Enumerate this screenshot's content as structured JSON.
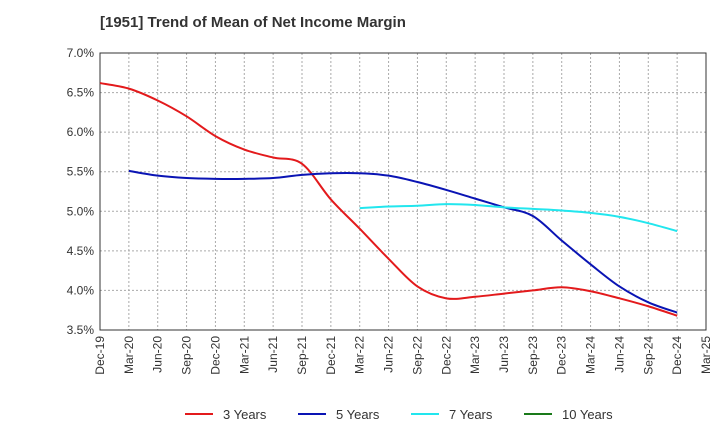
{
  "chart_data": {
    "type": "line",
    "title": "[1951]  Trend of Mean of Net Income Margin",
    "xlabel": "",
    "ylabel": "",
    "x_ticks": [
      "Dec-19",
      "Mar-20",
      "Jun-20",
      "Sep-20",
      "Dec-20",
      "Mar-21",
      "Jun-21",
      "Sep-21",
      "Dec-21",
      "Mar-22",
      "Jun-22",
      "Sep-22",
      "Dec-22",
      "Mar-23",
      "Jun-23",
      "Sep-23",
      "Dec-23",
      "Mar-24",
      "Jun-24",
      "Sep-24",
      "Dec-24",
      "Mar-25"
    ],
    "y_ticks": [
      "3.5%",
      "4.0%",
      "4.5%",
      "5.0%",
      "5.5%",
      "6.0%",
      "6.5%",
      "7.0%"
    ],
    "ylim": [
      3.5,
      7.0
    ],
    "grid": true,
    "legend_position": "bottom",
    "series": [
      {
        "name": "3 Years",
        "color": "#e31a1c",
        "values": [
          6.62,
          6.55,
          6.4,
          6.2,
          5.95,
          5.78,
          5.68,
          5.6,
          5.15,
          4.78,
          4.4,
          4.05,
          3.9,
          3.92,
          3.96,
          4.0,
          4.04,
          3.99,
          3.9,
          3.8,
          3.68,
          null
        ]
      },
      {
        "name": "5 Years",
        "color": "#0a14b4",
        "values": [
          null,
          5.51,
          5.45,
          5.42,
          5.41,
          5.41,
          5.42,
          5.46,
          5.48,
          5.48,
          5.45,
          5.37,
          5.27,
          5.16,
          5.05,
          4.94,
          4.63,
          4.33,
          4.05,
          3.85,
          3.72,
          null
        ]
      },
      {
        "name": "7 Years",
        "color": "#22e6ee",
        "values": [
          null,
          null,
          null,
          null,
          null,
          null,
          null,
          null,
          null,
          5.04,
          5.06,
          5.07,
          5.09,
          5.08,
          5.05,
          5.03,
          5.01,
          4.98,
          4.93,
          4.85,
          4.75,
          null
        ]
      },
      {
        "name": "10 Years",
        "color": "#1a7a1a",
        "values": [
          null,
          null,
          null,
          null,
          null,
          null,
          null,
          null,
          null,
          null,
          null,
          null,
          null,
          null,
          null,
          null,
          null,
          null,
          null,
          null,
          null,
          null
        ]
      }
    ]
  }
}
